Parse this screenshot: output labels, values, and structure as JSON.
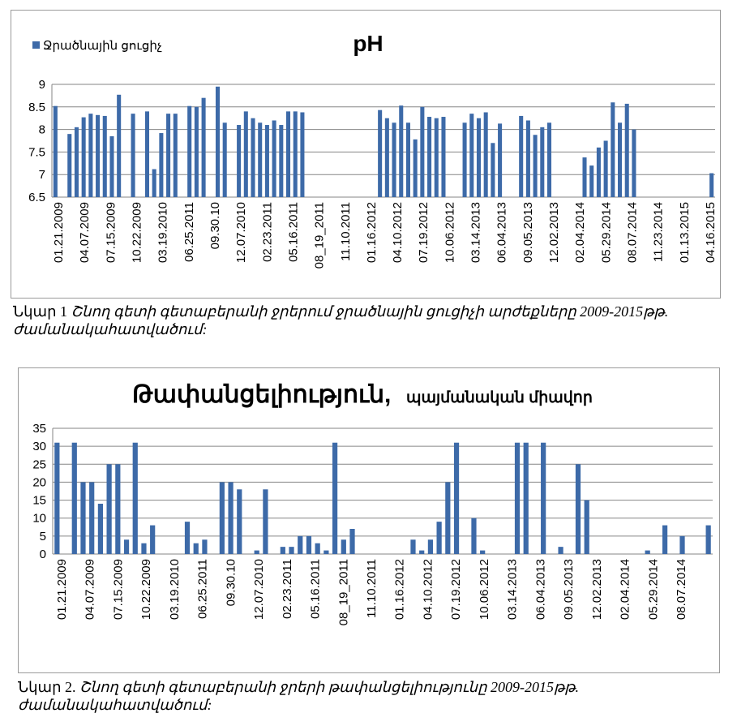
{
  "chart_data": [
    {
      "type": "bar",
      "title": "pH",
      "legend": {
        "label": "Ջրածնային ցուցիչ",
        "position": "top-left"
      },
      "color": "#3d6aa8",
      "ylim": [
        6.5,
        9
      ],
      "yticks": [
        "6.5",
        "7",
        "7.5",
        "8",
        "8.5",
        "9"
      ],
      "grid": true,
      "xtick_labels": [
        "01.21.2009",
        "04.07.2009",
        "07.15.2009",
        "10.22.2009",
        "03.19.2010",
        "06.25.2011",
        "09.30.10",
        "12.07.2010",
        "02.23.2011",
        "05.16.2011",
        "08_19_2011",
        "11.10.2011",
        "01.16.2012",
        "04.10.2012",
        "07.19.2012",
        "10.06.2012",
        "03.14.2013",
        "06.04.2013",
        "09.05.2013",
        "12.02.2013",
        "02.04.2014",
        "05.29.2014",
        "08.07.2014",
        "11.23.2014",
        "01.13.2015",
        "04.16.2015"
      ],
      "values": [
        8.52,
        null,
        7.9,
        8.05,
        8.27,
        8.35,
        8.32,
        8.3,
        7.85,
        8.77,
        null,
        8.35,
        null,
        8.4,
        7.12,
        7.92,
        8.35,
        8.35,
        null,
        8.52,
        8.5,
        8.7,
        null,
        8.95,
        8.15,
        null,
        8.1,
        8.4,
        8.25,
        8.15,
        8.1,
        8.2,
        8.1,
        8.4,
        8.4,
        8.38,
        null,
        null,
        null,
        null,
        null,
        null,
        null,
        null,
        null,
        null,
        8.43,
        8.25,
        8.15,
        8.53,
        8.15,
        7.78,
        8.5,
        8.28,
        8.25,
        8.28,
        null,
        null,
        8.15,
        8.35,
        8.25,
        8.38,
        7.7,
        8.13,
        null,
        null,
        8.3,
        8.2,
        7.88,
        8.05,
        8.15,
        null,
        null,
        null,
        null,
        7.38,
        7.2,
        7.6,
        7.75,
        8.6,
        8.15,
        8.57,
        8.0,
        null,
        null,
        null,
        null,
        null,
        null,
        null,
        null,
        null,
        null,
        7.03
      ]
    },
    {
      "type": "bar",
      "title": "Թափանցելիություն,",
      "subtitle": "պայմանական միավոր",
      "color": "#3d6aa8",
      "ylim": [
        0,
        35
      ],
      "yticks": [
        "0",
        "5",
        "10",
        "15",
        "20",
        "25",
        "30",
        "35"
      ],
      "grid": true,
      "xtick_labels": [
        "01.21.2009",
        "04.07.2009",
        "07.15.2009",
        "10.22.2009",
        "03.19.2010",
        "06.25.2011",
        "09.30.10",
        "12.07.2010",
        "02.23.2011",
        "05.16.2011",
        "08_19_2011",
        "11.10.2011",
        "01.16.2012",
        "04.10.2012",
        "07.19.2012",
        "10.06.2012",
        "03.14.2013",
        "06.04.2013",
        "09.05.2013",
        "12.02.2013",
        "02.04.2014",
        "05.29.2014",
        "08.07.2014"
      ],
      "values": [
        31,
        null,
        31,
        20,
        20,
        14,
        25,
        25,
        4,
        31,
        3,
        8,
        null,
        null,
        null,
        9,
        3,
        4,
        null,
        20,
        20,
        18,
        null,
        1,
        18,
        null,
        2,
        2,
        5,
        5,
        3,
        1,
        31,
        4,
        7,
        null,
        null,
        null,
        null,
        null,
        null,
        4,
        1,
        4,
        9,
        20,
        31,
        null,
        10,
        1,
        null,
        null,
        null,
        31,
        31,
        null,
        31,
        null,
        2,
        null,
        25,
        15,
        null,
        null,
        null,
        null,
        null,
        null,
        1,
        null,
        8,
        null,
        5,
        null,
        null,
        8
      ]
    }
  ],
  "captions": {
    "fig1_num": "Նկար 1",
    "fig1_text": "Շնող գետի գետաբերանի ջրերում ջրածնային ցուցիչի արժեքները 2009-2015թթ.",
    "fig1_text2": "ժամանակահատվածում:",
    "fig2_num": "Նկար 2.",
    "fig2_text": "Շնող գետի գետաբերանի ջրերի թափանցելիությունը  2009-2015թթ.",
    "fig2_text2": "ժամանակահատվածում:"
  }
}
